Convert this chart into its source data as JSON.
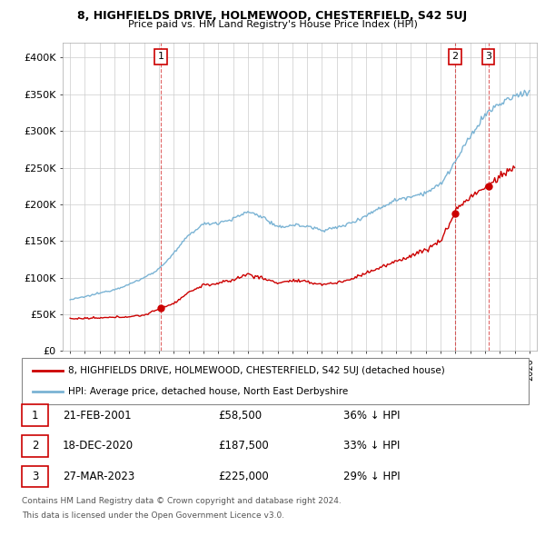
{
  "title": "8, HIGHFIELDS DRIVE, HOLMEWOOD, CHESTERFIELD, S42 5UJ",
  "subtitle": "Price paid vs. HM Land Registry's House Price Index (HPI)",
  "property_label": "8, HIGHFIELDS DRIVE, HOLMEWOOD, CHESTERFIELD, S42 5UJ (detached house)",
  "hpi_label": "HPI: Average price, detached house, North East Derbyshire",
  "footer_line1": "Contains HM Land Registry data © Crown copyright and database right 2024.",
  "footer_line2": "This data is licensed under the Open Government Licence v3.0.",
  "red_color": "#cc0000",
  "blue_color": "#7ab3d4",
  "grid_color": "#cccccc",
  "transactions": [
    {
      "num": 1,
      "date_x": 2001.13,
      "price": 58500,
      "date_str": "21-FEB-2001",
      "price_str": "£58,500",
      "pct": "36% ↓ HPI"
    },
    {
      "num": 2,
      "date_x": 2020.97,
      "price": 187500,
      "date_str": "18-DEC-2020",
      "price_str": "£187,500",
      "pct": "33% ↓ HPI"
    },
    {
      "num": 3,
      "date_x": 2023.23,
      "price": 225000,
      "date_str": "27-MAR-2023",
      "price_str": "£225,000",
      "pct": "29% ↓ HPI"
    }
  ],
  "ylim": [
    0,
    420000
  ],
  "xlim": [
    1994.5,
    2026.5
  ],
  "yticks": [
    0,
    50000,
    100000,
    150000,
    200000,
    250000,
    300000,
    350000,
    400000
  ],
  "ytick_labels": [
    "£0",
    "£50K",
    "£100K",
    "£150K",
    "£200K",
    "£250K",
    "£300K",
    "£350K",
    "£400K"
  ],
  "xticks": [
    1995,
    1996,
    1997,
    1998,
    1999,
    2000,
    2001,
    2002,
    2003,
    2004,
    2005,
    2006,
    2007,
    2008,
    2009,
    2010,
    2011,
    2012,
    2013,
    2014,
    2015,
    2016,
    2017,
    2018,
    2019,
    2020,
    2021,
    2022,
    2023,
    2024,
    2025,
    2026
  ],
  "hpi_anchors_x": [
    1995,
    1996,
    1997,
    1998,
    1999,
    2000,
    2001,
    2002,
    2003,
    2004,
    2005,
    2006,
    2007,
    2008,
    2009,
    2010,
    2011,
    2012,
    2013,
    2014,
    2015,
    2016,
    2017,
    2018,
    2019,
    2020,
    2021,
    2022,
    2023,
    2024,
    2025,
    2026
  ],
  "hpi_anchors_y": [
    70000,
    74000,
    79000,
    84000,
    91000,
    100000,
    112000,
    133000,
    158000,
    173000,
    175000,
    180000,
    190000,
    183000,
    168000,
    172000,
    170000,
    165000,
    168000,
    175000,
    185000,
    196000,
    206000,
    211000,
    216000,
    227000,
    258000,
    292000,
    322000,
    337000,
    347000,
    355000
  ],
  "prop_anchors_x": [
    1995,
    1996,
    1997,
    1998,
    1999,
    2000,
    2001,
    2001.13,
    2002,
    2003,
    2004,
    2005,
    2006,
    2007,
    2008,
    2009,
    2010,
    2011,
    2012,
    2013,
    2014,
    2015,
    2016,
    2017,
    2018,
    2019,
    2020,
    2020.97,
    2021,
    2022,
    2023,
    2023.23,
    2024,
    2025
  ],
  "prop_anchors_y": [
    44000,
    44500,
    45000,
    46000,
    47000,
    49000,
    57000,
    58500,
    65000,
    80000,
    90000,
    92000,
    97000,
    105000,
    99000,
    93000,
    96000,
    94000,
    91000,
    93000,
    98000,
    107000,
    114000,
    122000,
    130000,
    138000,
    150000,
    187500,
    192000,
    210000,
    222000,
    225000,
    238000,
    250000
  ]
}
